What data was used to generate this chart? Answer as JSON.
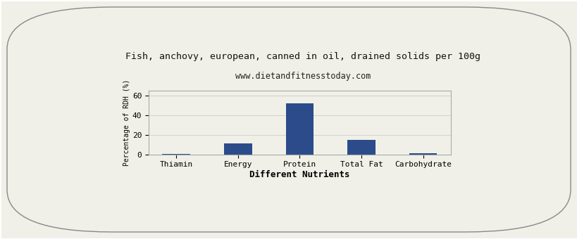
{
  "title": "Fish, anchovy, european, canned in oil, drained solids per 100g",
  "subtitle": "www.dietandfitnesstoday.com",
  "xlabel": "Different Nutrients",
  "ylabel": "Percentage of RDH (%)",
  "categories": [
    "Thiamin",
    "Energy",
    "Protein",
    "Total Fat",
    "Carbohydrate"
  ],
  "values": [
    0.3,
    11,
    52,
    15,
    1
  ],
  "bar_color": "#2b4b8a",
  "ylim": [
    0,
    65
  ],
  "yticks": [
    0,
    20,
    40,
    60
  ],
  "background_color": "#f0f0e8",
  "plot_bg_color": "#f0f0e8",
  "border_color": "#aaaaaa",
  "title_fontsize": 9.5,
  "subtitle_fontsize": 8.5,
  "xlabel_fontsize": 9,
  "ylabel_fontsize": 7,
  "tick_fontsize": 8
}
